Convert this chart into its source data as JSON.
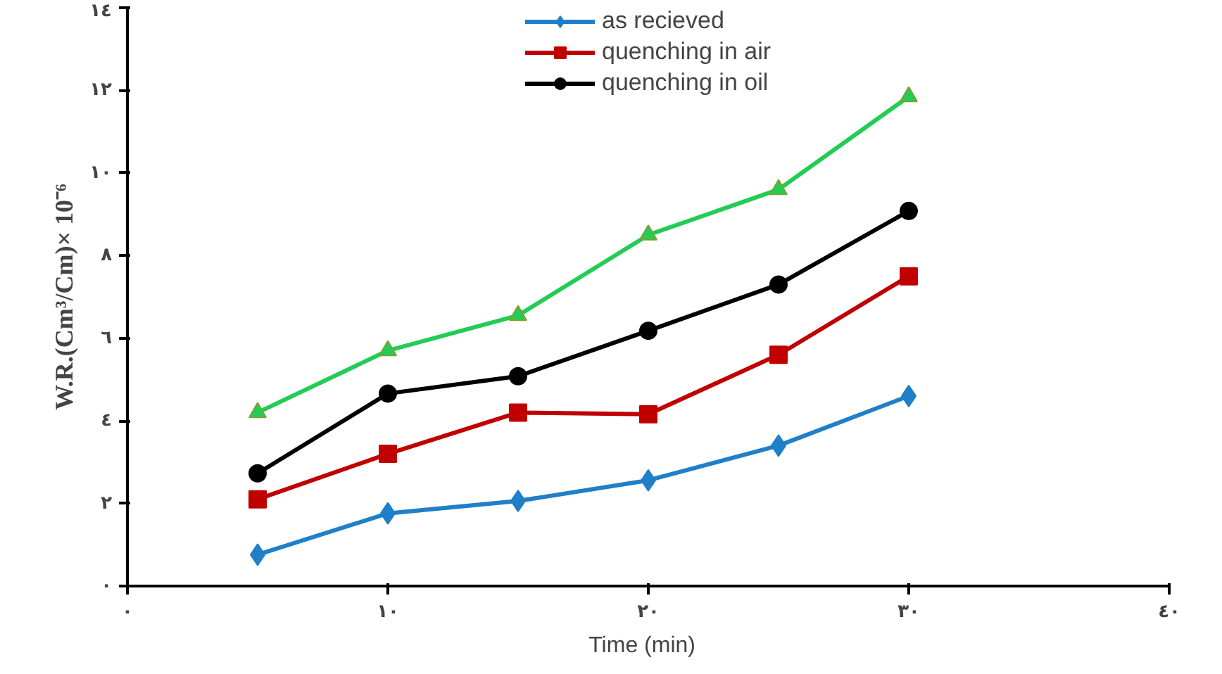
{
  "chart_data": {
    "type": "line",
    "xlabel": "Time   (min)",
    "ylabel": "W.R.(Cm³/Cm)× 10⁻⁶",
    "x": [
      5,
      10,
      15,
      20,
      25,
      30
    ],
    "series": [
      {
        "name": "as recieved",
        "color": "#1f7fc8",
        "marker": "diamond",
        "values": [
          0.76,
          1.76,
          2.06,
          2.56,
          3.4,
          4.6
        ]
      },
      {
        "name": "quenching in air",
        "color": "#c00000",
        "marker": "square",
        "values": [
          2.1,
          3.2,
          4.2,
          4.16,
          5.6,
          7.5
        ]
      },
      {
        "name": "quenching in oil",
        "color": "#000000",
        "marker": "circle",
        "values": [
          2.73,
          4.66,
          5.08,
          6.18,
          7.3,
          9.08
        ]
      },
      {
        "color": "#22cc55",
        "marker": "triangle",
        "values": [
          4.2,
          5.7,
          6.55,
          8.5,
          9.6,
          11.85
        ]
      }
    ],
    "xlim": [
      0,
      40
    ],
    "xticks": [
      {
        "value": 0,
        "label": "٠"
      },
      {
        "value": 10,
        "label": "١٠"
      },
      {
        "value": 20,
        "label": "٢٠"
      },
      {
        "value": 30,
        "label": "٣٠"
      },
      {
        "value": 40,
        "label": "٤٠"
      }
    ],
    "ylim": [
      0,
      14
    ],
    "yticks": [
      {
        "value": 0,
        "label": "٠"
      },
      {
        "value": 2,
        "label": "٢"
      },
      {
        "value": 4,
        "label": "٤"
      },
      {
        "value": 6,
        "label": "٦"
      },
      {
        "value": 8,
        "label": "٨"
      },
      {
        "value": 10,
        "label": "١٠"
      },
      {
        "value": 12,
        "label": "١٢"
      },
      {
        "value": 14,
        "label": "١٤"
      }
    ],
    "grid": false,
    "legend": "top",
    "line_style": "solid"
  }
}
